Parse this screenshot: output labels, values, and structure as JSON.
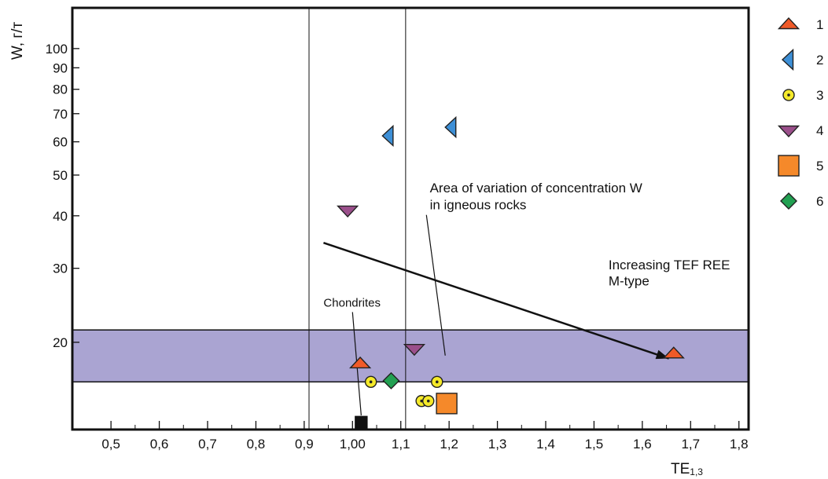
{
  "chart_data": {
    "type": "scatter",
    "xlabel": "TE",
    "xlabel_sub": "1,3",
    "ylabel": "W, г/т",
    "x_ticks": [
      {
        "v": 0.5,
        "label": "0,5"
      },
      {
        "v": 0.6,
        "label": "0,6"
      },
      {
        "v": 0.7,
        "label": "0,7"
      },
      {
        "v": 0.8,
        "label": "0,8"
      },
      {
        "v": 0.9,
        "label": "0,9"
      },
      {
        "v": 1.0,
        "label": "1,00"
      },
      {
        "v": 1.1,
        "label": "1,1"
      },
      {
        "v": 1.2,
        "label": "1,2"
      },
      {
        "v": 1.3,
        "label": "1,3"
      },
      {
        "v": 1.4,
        "label": "1,4"
      },
      {
        "v": 1.5,
        "label": "1,5"
      },
      {
        "v": 1.6,
        "label": "1,6"
      },
      {
        "v": 1.7,
        "label": "1,7"
      },
      {
        "v": 1.8,
        "label": "1,8"
      }
    ],
    "y_ticks": [
      {
        "v": 20,
        "label": "20"
      },
      {
        "v": 30,
        "label": "30"
      },
      {
        "v": 40,
        "label": "40"
      },
      {
        "v": 50,
        "label": "50"
      },
      {
        "v": 60,
        "label": "60"
      },
      {
        "v": 70,
        "label": "70"
      },
      {
        "v": 80,
        "label": "80"
      },
      {
        "v": 90,
        "label": "90"
      },
      {
        "v": 100,
        "label": "100"
      }
    ],
    "xlim": [
      0.42,
      1.82
    ],
    "y_scale": "log",
    "ylim": [
      12.4,
      125
    ],
    "vertical_lines": [
      0.91,
      1.11
    ],
    "band": {
      "y_from": 16.1,
      "y_to": 21.4,
      "color": "#aaa4d2"
    },
    "arrow": {
      "from": [
        0.94,
        34.5
      ],
      "to": [
        1.655,
        18.3
      ]
    },
    "series": [
      {
        "name": "1",
        "marker": "triangle-up",
        "color": "#f05a28",
        "points": [
          [
            1.016,
            17.8
          ],
          [
            1.665,
            18.8
          ]
        ]
      },
      {
        "name": "2",
        "marker": "triangle-left",
        "color": "#3d8fd6",
        "points": [
          [
            1.075,
            62.0
          ],
          [
            1.205,
            65.0
          ]
        ]
      },
      {
        "name": "3",
        "marker": "circle",
        "color": "#f5ea2a",
        "points": [
          [
            1.038,
            16.1
          ],
          [
            1.143,
            14.5
          ],
          [
            1.157,
            14.5
          ],
          [
            1.175,
            16.1
          ]
        ]
      },
      {
        "name": "4",
        "marker": "triangle-down",
        "color": "#9b4f8b",
        "points": [
          [
            0.99,
            41.2
          ],
          [
            1.128,
            19.3
          ]
        ]
      },
      {
        "name": "5",
        "marker": "square",
        "color": "#f5892a",
        "points": [
          [
            1.195,
            14.3
          ]
        ]
      },
      {
        "name": "6",
        "marker": "diamond",
        "color": "#22a052",
        "points": [
          [
            1.08,
            16.2
          ]
        ]
      }
    ],
    "extra_points": [
      {
        "marker": "small-square",
        "color": "#111111",
        "x": 1.018,
        "y": 12.9
      }
    ],
    "annotations": [
      {
        "text": "Chondrites",
        "x": 0.94,
        "y": 24.3
      },
      {
        "text": "Area of variation of concentration W",
        "x": 1.16,
        "y": 45.5
      },
      {
        "text": "in igneous rocks",
        "x": 1.16,
        "y": 41.5
      },
      {
        "text": "Increasing TEF REE",
        "x": 1.53,
        "y": 29.8
      },
      {
        "text": "M-type",
        "x": 1.53,
        "y": 27.3
      }
    ],
    "leaders": [
      {
        "from": [
          1.0,
          23.6
        ],
        "to": [
          1.018,
          13.4
        ]
      },
      {
        "from": [
          1.153,
          40.2
        ],
        "to": [
          1.192,
          18.6
        ]
      }
    ],
    "legend": {
      "position": "right",
      "entries": [
        "1",
        "2",
        "3",
        "4",
        "5",
        "6"
      ]
    }
  }
}
